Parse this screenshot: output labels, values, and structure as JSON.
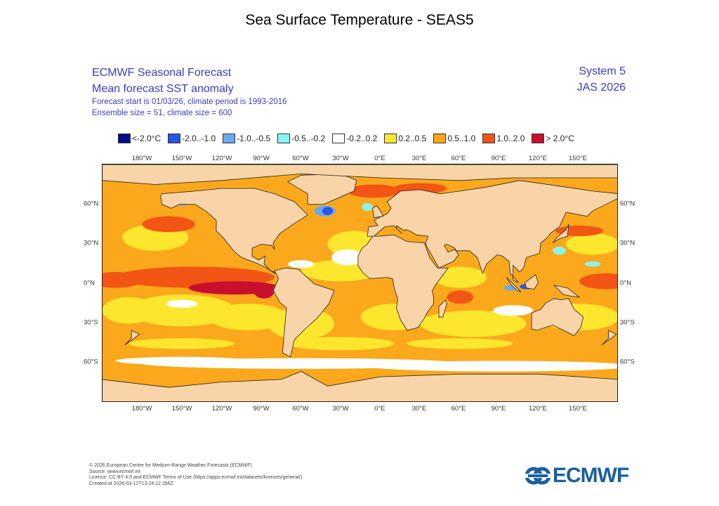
{
  "page_title": "Sea Surface Temperature - SEAS5",
  "header": {
    "line1": "ECMWF Seasonal Forecast",
    "line2": "Mean forecast SST anomaly",
    "line3": "Forecast start is 01/03/26, climate period is 1993-2016",
    "line4": "Ensemble size = 51, climate size = 600",
    "system": "System 5",
    "period": "JAS 2026"
  },
  "legend": [
    {
      "label": "<-2.0°C",
      "color": "#000a8c"
    },
    {
      "label": "-2.0..-1.0",
      "color": "#2a55e8"
    },
    {
      "label": "-1.0..-0.5",
      "color": "#6aa8f0"
    },
    {
      "label": "-0.5..-0.2",
      "color": "#8af4f4"
    },
    {
      "label": "-0.2..0.2",
      "color": "#ffffff"
    },
    {
      "label": "0.2..0.5",
      "color": "#fde72e"
    },
    {
      "label": "0.5..1.0",
      "color": "#fba81c"
    },
    {
      "label": "1.0..2.0",
      "color": "#f25514"
    },
    {
      "label": "> 2.0°C",
      "color": "#c8102e"
    }
  ],
  "land_color": "#f9d4a8",
  "lon_labels": [
    "180°W",
    "150°W",
    "120°W",
    "90°W",
    "60°W",
    "30°W",
    "0°E",
    "30°E",
    "60°E",
    "90°E",
    "120°E",
    "150°E"
  ],
  "lat_labels": [
    "60°N",
    "30°N",
    "0°N",
    "30°S",
    "60°S"
  ],
  "footer": {
    "copyright": "© 2026 European Centre for Medium-Range Weather Forecasts (ECMWF)",
    "source": "Source: www.ecmwf.int",
    "licence": "Licence: CC BY 4.0 and ECMWF Terms of Use (https://apps.ecmwf.int/datasets/licences/general/)",
    "created": "Created at 2026-03-12T13:24:12.286Z"
  },
  "logo_text": "ECMWF"
}
